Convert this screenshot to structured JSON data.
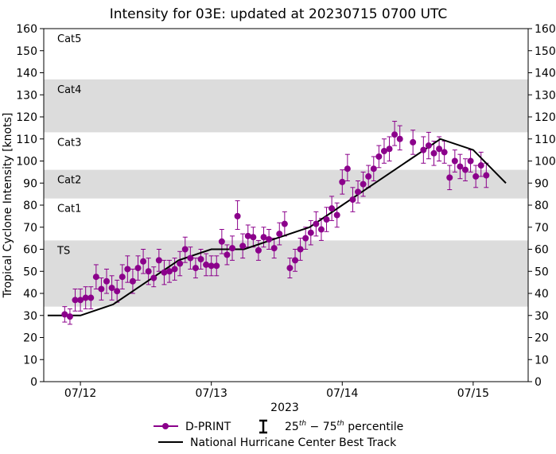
{
  "chart_data": {
    "type": "scatter",
    "title": "Intensity for 03E: updated at 20230715 0700 UTC",
    "xlabel": "2023",
    "ylabel": "Tropical Cyclone Intensity [knots]",
    "ylim": [
      0,
      160
    ],
    "yticks": [
      0,
      10,
      20,
      30,
      40,
      50,
      60,
      70,
      80,
      90,
      100,
      110,
      120,
      130,
      140,
      150,
      160
    ],
    "xlim": [
      -0.28,
      3.42
    ],
    "x_unit": "days after 2023-07-12 00 UTC",
    "xticks": [
      {
        "value": 0,
        "label": "07/12"
      },
      {
        "value": 1,
        "label": "07/13"
      },
      {
        "value": 2,
        "label": "07/14"
      },
      {
        "value": 3,
        "label": "07/15"
      }
    ],
    "category_bands": [
      {
        "name": "TS",
        "low": 34,
        "high": 64,
        "shaded": true
      },
      {
        "name": "Cat1",
        "low": 64,
        "high": 83,
        "shaded": false
      },
      {
        "name": "Cat2",
        "low": 83,
        "high": 96,
        "shaded": true
      },
      {
        "name": "Cat3",
        "low": 96,
        "high": 113,
        "shaded": false
      },
      {
        "name": "Cat4",
        "low": 113,
        "high": 137,
        "shaded": true
      },
      {
        "name": "Cat5",
        "low": 137,
        "high": 160,
        "shaded": false
      }
    ],
    "legend": {
      "dprint": "D-PRINT",
      "percentile_prefix": "25",
      "percentile_sup1": "th",
      "percentile_mid": " − 75",
      "percentile_sup2": "th",
      "percentile_suffix": " percentile",
      "best_track": "National Hurricane Center Best Track",
      "placement": "bottom-center"
    },
    "colors": {
      "dprint": "#8b008b",
      "best_track": "#000000",
      "band": "#dcdcdc"
    },
    "best_track": {
      "name": "National Hurricane Center Best Track",
      "x": [
        -0.25,
        0.0,
        0.25,
        0.5,
        0.75,
        1.0,
        1.25,
        1.5,
        1.75,
        2.0,
        2.25,
        2.5,
        2.75,
        3.0,
        3.25
      ],
      "y": [
        30,
        30,
        35,
        45,
        55,
        60,
        60,
        65,
        70,
        80,
        90,
        100,
        110,
        105,
        90
      ]
    },
    "series": [
      {
        "name": "D-PRINT",
        "points": [
          {
            "x": -0.12,
            "y": 30.5,
            "lo": 27,
            "hi": 34
          },
          {
            "x": -0.08,
            "y": 29.5,
            "lo": 26,
            "hi": 33
          },
          {
            "x": -0.04,
            "y": 37,
            "lo": 32,
            "hi": 42
          },
          {
            "x": 0.0,
            "y": 37,
            "lo": 32,
            "hi": 42
          },
          {
            "x": 0.04,
            "y": 38,
            "lo": 33,
            "hi": 43
          },
          {
            "x": 0.08,
            "y": 38,
            "lo": 33,
            "hi": 43
          },
          {
            "x": 0.12,
            "y": 47.5,
            "lo": 42,
            "hi": 53
          },
          {
            "x": 0.16,
            "y": 42,
            "lo": 37,
            "hi": 47
          },
          {
            "x": 0.2,
            "y": 45.5,
            "lo": 40,
            "hi": 51
          },
          {
            "x": 0.24,
            "y": 42.5,
            "lo": 37,
            "hi": 48
          },
          {
            "x": 0.28,
            "y": 41,
            "lo": 36,
            "hi": 46
          },
          {
            "x": 0.32,
            "y": 47.5,
            "lo": 42,
            "hi": 53
          },
          {
            "x": 0.36,
            "y": 51,
            "lo": 45,
            "hi": 57
          },
          {
            "x": 0.4,
            "y": 45.5,
            "lo": 40,
            "hi": 51
          },
          {
            "x": 0.44,
            "y": 51.5,
            "lo": 46,
            "hi": 57
          },
          {
            "x": 0.48,
            "y": 54.5,
            "lo": 49,
            "hi": 60
          },
          {
            "x": 0.52,
            "y": 50,
            "lo": 44,
            "hi": 56
          },
          {
            "x": 0.56,
            "y": 47,
            "lo": 43,
            "hi": 52
          },
          {
            "x": 0.6,
            "y": 55,
            "lo": 50,
            "hi": 60
          },
          {
            "x": 0.64,
            "y": 49.5,
            "lo": 44,
            "hi": 55
          },
          {
            "x": 0.68,
            "y": 50,
            "lo": 45,
            "hi": 55
          },
          {
            "x": 0.72,
            "y": 51,
            "lo": 46,
            "hi": 56
          },
          {
            "x": 0.76,
            "y": 53.5,
            "lo": 48,
            "hi": 59
          },
          {
            "x": 0.8,
            "y": 60,
            "lo": 54,
            "hi": 65.5
          },
          {
            "x": 0.84,
            "y": 56,
            "lo": 51,
            "hi": 61
          },
          {
            "x": 0.88,
            "y": 51.5,
            "lo": 47,
            "hi": 56
          },
          {
            "x": 0.92,
            "y": 55.5,
            "lo": 51,
            "hi": 60
          },
          {
            "x": 0.96,
            "y": 53,
            "lo": 48,
            "hi": 58
          },
          {
            "x": 1.0,
            "y": 52.5,
            "lo": 48,
            "hi": 57
          },
          {
            "x": 1.04,
            "y": 52.5,
            "lo": 48,
            "hi": 57
          },
          {
            "x": 1.08,
            "y": 63.5,
            "lo": 58,
            "hi": 69
          },
          {
            "x": 1.12,
            "y": 57.5,
            "lo": 53,
            "hi": 62
          },
          {
            "x": 1.16,
            "y": 60.5,
            "lo": 55,
            "hi": 66
          },
          {
            "x": 1.2,
            "y": 75,
            "lo": 69,
            "hi": 82
          },
          {
            "x": 1.24,
            "y": 61.5,
            "lo": 56,
            "hi": 67
          },
          {
            "x": 1.28,
            "y": 66,
            "lo": 61,
            "hi": 71
          },
          {
            "x": 1.32,
            "y": 65.5,
            "lo": 61,
            "hi": 70
          },
          {
            "x": 1.36,
            "y": 59.5,
            "lo": 55,
            "hi": 64
          },
          {
            "x": 1.4,
            "y": 65.5,
            "lo": 61,
            "hi": 70
          },
          {
            "x": 1.44,
            "y": 64.5,
            "lo": 60,
            "hi": 69
          },
          {
            "x": 1.48,
            "y": 60.5,
            "lo": 56,
            "hi": 65
          },
          {
            "x": 1.52,
            "y": 67,
            "lo": 62,
            "hi": 72
          },
          {
            "x": 1.56,
            "y": 71.5,
            "lo": 66,
            "hi": 77
          },
          {
            "x": 1.6,
            "y": 51.5,
            "lo": 47,
            "hi": 56
          },
          {
            "x": 1.64,
            "y": 55,
            "lo": 50,
            "hi": 60
          },
          {
            "x": 1.68,
            "y": 60,
            "lo": 55,
            "hi": 65
          },
          {
            "x": 1.72,
            "y": 65,
            "lo": 60,
            "hi": 70
          },
          {
            "x": 1.76,
            "y": 67.5,
            "lo": 62,
            "hi": 73
          },
          {
            "x": 1.8,
            "y": 71.5,
            "lo": 66,
            "hi": 77
          },
          {
            "x": 1.84,
            "y": 69,
            "lo": 64,
            "hi": 74
          },
          {
            "x": 1.88,
            "y": 73.5,
            "lo": 68,
            "hi": 79
          },
          {
            "x": 1.92,
            "y": 78.5,
            "lo": 73,
            "hi": 84
          },
          {
            "x": 1.96,
            "y": 75.5,
            "lo": 70,
            "hi": 81
          },
          {
            "x": 2.0,
            "y": 90.5,
            "lo": 85,
            "hi": 96
          },
          {
            "x": 2.04,
            "y": 96.5,
            "lo": 91,
            "hi": 103
          },
          {
            "x": 2.08,
            "y": 82.5,
            "lo": 77,
            "hi": 88
          },
          {
            "x": 2.12,
            "y": 86,
            "lo": 81,
            "hi": 91
          },
          {
            "x": 2.16,
            "y": 89.5,
            "lo": 84,
            "hi": 95
          },
          {
            "x": 2.2,
            "y": 93,
            "lo": 88,
            "hi": 98
          },
          {
            "x": 2.24,
            "y": 96.5,
            "lo": 91,
            "hi": 102
          },
          {
            "x": 2.28,
            "y": 102,
            "lo": 97,
            "hi": 107
          },
          {
            "x": 2.32,
            "y": 104.5,
            "lo": 99,
            "hi": 110
          },
          {
            "x": 2.36,
            "y": 105.5,
            "lo": 100,
            "hi": 111
          },
          {
            "x": 2.4,
            "y": 112,
            "lo": 107,
            "hi": 118
          },
          {
            "x": 2.44,
            "y": 110,
            "lo": 105,
            "hi": 116
          },
          {
            "x": 2.54,
            "y": 108.5,
            "lo": 103,
            "hi": 114
          },
          {
            "x": 2.62,
            "y": 105,
            "lo": 99,
            "hi": 111
          },
          {
            "x": 2.66,
            "y": 107,
            "lo": 101,
            "hi": 113
          },
          {
            "x": 2.7,
            "y": 103.5,
            "lo": 98,
            "hi": 109
          },
          {
            "x": 2.74,
            "y": 105.5,
            "lo": 100,
            "hi": 111
          },
          {
            "x": 2.78,
            "y": 104,
            "lo": 99,
            "hi": 109
          },
          {
            "x": 2.82,
            "y": 92.5,
            "lo": 87,
            "hi": 98
          },
          {
            "x": 2.86,
            "y": 100,
            "lo": 95,
            "hi": 105
          },
          {
            "x": 2.9,
            "y": 97.5,
            "lo": 92,
            "hi": 103
          },
          {
            "x": 2.94,
            "y": 96,
            "lo": 91,
            "hi": 101
          },
          {
            "x": 2.98,
            "y": 100,
            "lo": 95,
            "hi": 105
          },
          {
            "x": 3.02,
            "y": 93,
            "lo": 88,
            "hi": 98
          },
          {
            "x": 3.06,
            "y": 98,
            "lo": 93,
            "hi": 104
          },
          {
            "x": 3.1,
            "y": 93.5,
            "lo": 88,
            "hi": 99
          }
        ]
      }
    ]
  }
}
